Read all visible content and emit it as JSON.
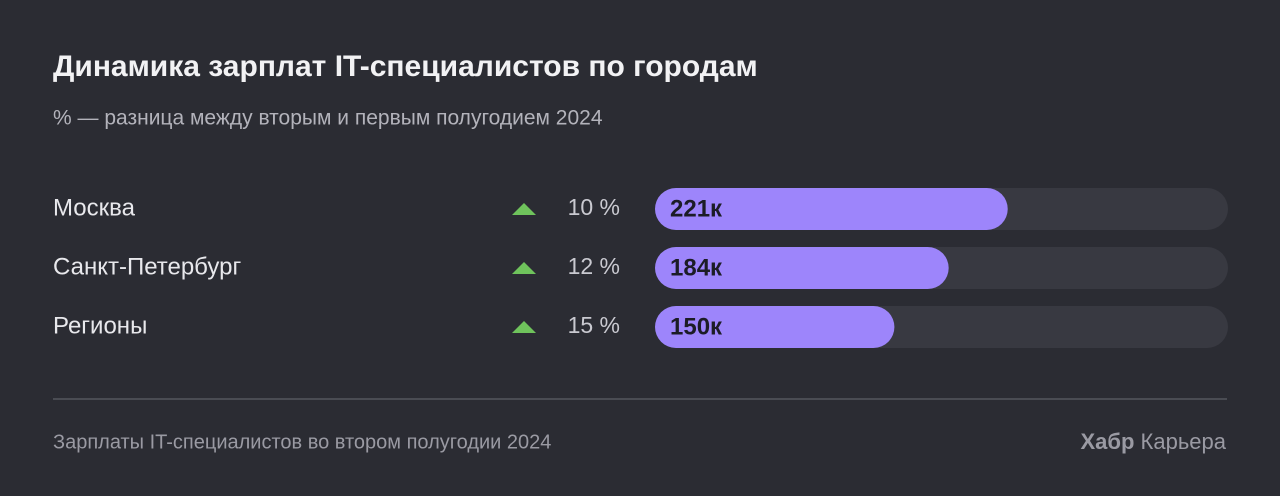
{
  "chart_data": {
    "type": "bar",
    "title": "Динамика зарплат IT-специалистов по городам",
    "subtitle": "% — разница между вторым и первым полугодием 2024",
    "categories": [
      "Москва",
      "Санкт-Петербург",
      "Регионы"
    ],
    "values": [
      221,
      184,
      150
    ],
    "value_labels": [
      "221к",
      "184к",
      "150к"
    ],
    "change_values": [
      10,
      12,
      15
    ],
    "change_labels": [
      "10 %",
      "12 %",
      "15 %"
    ],
    "xlim": [
      0,
      359
    ],
    "color": "#9d85fb"
  },
  "footer": {
    "caption": "Зарплаты IT-специалистов во втором полугодии 2024",
    "brand": "Хабр",
    "brand_suffix": "Карьера"
  }
}
